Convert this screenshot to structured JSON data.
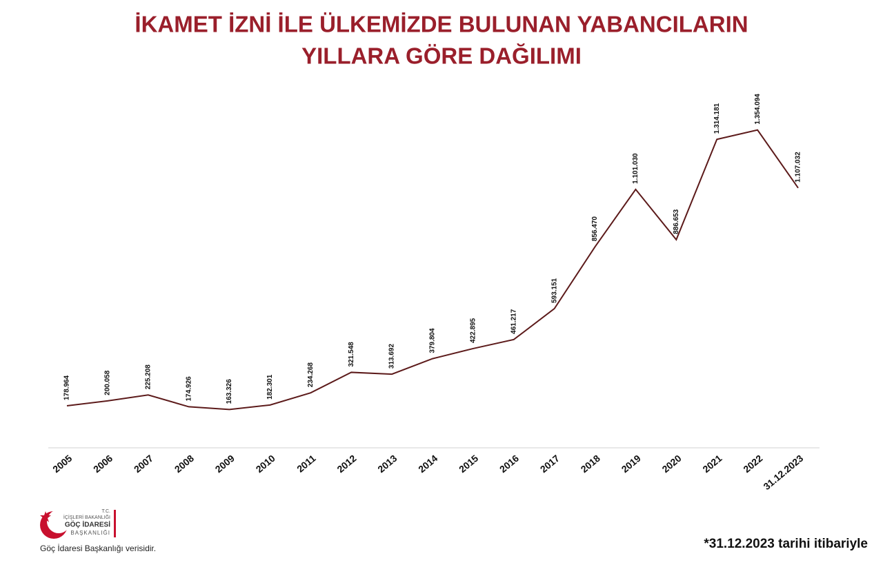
{
  "chart_data": {
    "type": "line",
    "title": [
      "İKAMET İZNİ İLE ÜLKEMİZDE BULUNAN YABANCILARIN",
      "YILLARA GÖRE DAĞILIMI"
    ],
    "categories": [
      "2005",
      "2006",
      "2007",
      "2008",
      "2009",
      "2010",
      "2011",
      "2012",
      "2013",
      "2014",
      "2015",
      "2016",
      "2017",
      "2018",
      "2019",
      "2020",
      "2021",
      "2022",
      "31.12.2023"
    ],
    "values": [
      178964,
      200058,
      225208,
      174926,
      163326,
      182301,
      234268,
      321548,
      313692,
      379804,
      422895,
      461217,
      593151,
      856470,
      1101030,
      886653,
      1314181,
      1354094,
      1107032
    ],
    "value_labels": [
      "178.964",
      "200.058",
      "225.208",
      "174.926",
      "163.326",
      "182.301",
      "234.268",
      "321.548",
      "313.692",
      "379.804",
      "422.895",
      "461.217",
      "593.151",
      "856.470",
      "1.101.030",
      "886.653",
      "1.314.181",
      "1.354.094",
      "1.107.032"
    ],
    "color": "#5c1a1a",
    "ylim": [
      0,
      1400000
    ],
    "logo": [
      "T.C.",
      "İÇİŞLERİ BAKANLIĞI",
      "GÖÇ İDARESİ",
      "BAŞKANLIĞI"
    ],
    "source": "Göç İdaresi Başkanlığı verisidir.",
    "note": "*31.12.2023 tarihi itibariyle"
  }
}
